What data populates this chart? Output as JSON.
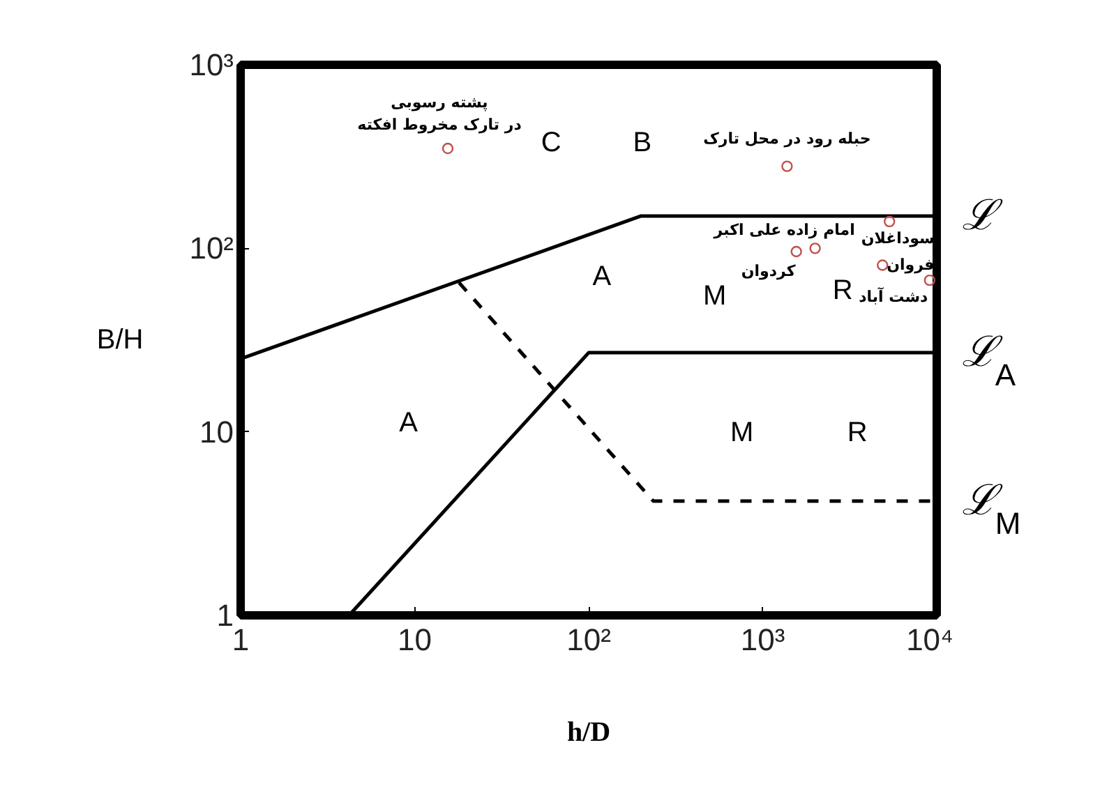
{
  "chart_data": {
    "type": "line",
    "xlabel": "h/D",
    "ylabel": "B/H",
    "log": "xy",
    "grid": false,
    "xlim": [
      1,
      10000
    ],
    "ylim": [
      1,
      1000
    ],
    "xticks": [
      1,
      10,
      {
        "value": 100,
        "label": "10²"
      },
      {
        "value": 1000,
        "label": "10³"
      },
      {
        "value": 10000,
        "label": "10⁴"
      }
    ],
    "yticks": [
      1,
      10,
      {
        "value": 100,
        "label": "10²"
      },
      {
        "value": 1000,
        "label": "10³"
      }
    ],
    "series": [
      {
        "name": "ℒ",
        "color": "#000000",
        "line_style": "solid",
        "x": [
          1,
          200,
          10000
        ],
        "values": [
          25,
          150,
          150
        ]
      },
      {
        "name": "ℒ$_{A}$",
        "color": "#000000",
        "line_style": "solid",
        "x": [
          4.2,
          100,
          10000
        ],
        "values": [
          1,
          27,
          27
        ]
      },
      {
        "name": "ℒ$_{M}$",
        "color": "#000000",
        "line_style": "dashed",
        "x": [
          18,
          235,
          10000
        ],
        "values": [
          65,
          4.2,
          4.2
        ]
      },
      {
        "type": "scatter",
        "marker": "circle",
        "color": "#c0504d",
        "x": [
          15.5,
          1380,
          1560,
          2000,
          5350,
          4880,
          9100
        ],
        "values": [
          350,
          280,
          96,
          100,
          140,
          81,
          67
        ]
      }
    ],
    "annotations": [
      "C",
      "B",
      "A",
      "M",
      "R",
      "A",
      "M",
      "R",
      {
        "text": "پشته رسوبی\nدر تارک مخروط افکته",
        "x": 15.5,
        "y": 350
      },
      {
        "text": "حبله رود در محل تارک",
        "x": 1380,
        "y": 280
      },
      {
        "text": "امام زاده علی اکبر",
        "x": 2000,
        "y": 100
      },
      {
        "text": "کردوان",
        "x": 1560,
        "y": 96
      },
      {
        "text": "سوداغلان",
        "x": 5350,
        "y": 140
      },
      {
        "text": "فروان",
        "x": 4880,
        "y": 81
      },
      {
        "text": "دشت آباد",
        "x": 9100,
        "y": 67
      }
    ]
  }
}
